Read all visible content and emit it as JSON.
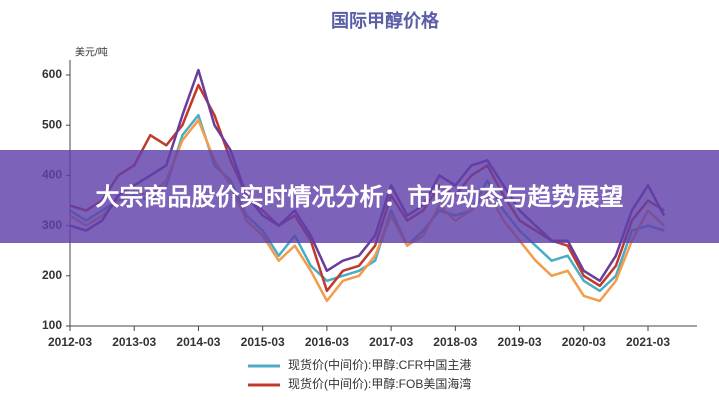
{
  "banner": {
    "title": "大宗商品股价实时情况分析：市场动态与趋势展望"
  },
  "chart_data": {
    "type": "line",
    "title": "国际甲醇价格",
    "y_label": "美元/吨",
    "x": [
      "2012-03",
      "2012-06",
      "2012-09",
      "2012-12",
      "2013-03",
      "2013-06",
      "2013-09",
      "2013-12",
      "2014-03",
      "2014-06",
      "2014-09",
      "2014-12",
      "2015-03",
      "2015-06",
      "2015-09",
      "2015-12",
      "2016-03",
      "2016-06",
      "2016-09",
      "2016-12",
      "2017-03",
      "2017-06",
      "2017-09",
      "2017-12",
      "2018-03",
      "2018-06",
      "2018-09",
      "2018-12",
      "2019-03",
      "2019-06",
      "2019-09",
      "2019-12",
      "2020-03",
      "2020-06",
      "2020-09",
      "2020-12",
      "2021-03",
      "2021-06"
    ],
    "series": [
      {
        "name": "现货价(中间价):甲醇:CFR中国主港",
        "color": "#4bacc6",
        "values": [
          330,
          310,
          330,
          350,
          360,
          350,
          380,
          480,
          520,
          420,
          390,
          320,
          290,
          240,
          280,
          220,
          190,
          200,
          210,
          230,
          330,
          260,
          290,
          330,
          320,
          330,
          390,
          330,
          290,
          260,
          230,
          240,
          190,
          170,
          200,
          290,
          300,
          290
        ]
      },
      {
        "name": "现货价(中间价):甲醇:FOB美国海湾",
        "color": "#c0392b",
        "values": [
          340,
          330,
          350,
          400,
          420,
          480,
          460,
          500,
          580,
          520,
          430,
          360,
          330,
          300,
          320,
          270,
          170,
          210,
          220,
          260,
          360,
          310,
          330,
          380,
          360,
          400,
          420,
          360,
          310,
          290,
          270,
          260,
          200,
          180,
          220,
          310,
          350,
          330
        ]
      },
      {
        "color": "#f39c4a",
        "values": [
          320,
          300,
          320,
          350,
          370,
          360,
          390,
          470,
          510,
          430,
          380,
          310,
          280,
          230,
          260,
          210,
          150,
          190,
          200,
          240,
          320,
          260,
          280,
          340,
          310,
          330,
          370,
          310,
          270,
          230,
          200,
          210,
          160,
          150,
          190,
          270,
          330,
          300
        ]
      },
      {
        "color": "#6a3d9a",
        "values": [
          300,
          290,
          310,
          360,
          380,
          400,
          420,
          520,
          610,
          500,
          450,
          360,
          320,
          300,
          330,
          280,
          210,
          230,
          240,
          280,
          380,
          320,
          340,
          400,
          380,
          420,
          430,
          380,
          330,
          300,
          270,
          270,
          210,
          190,
          240,
          330,
          380,
          320
        ]
      }
    ],
    "ylim": [
      100,
      600
    ],
    "yticks": [
      100,
      200,
      300,
      400,
      500,
      600
    ],
    "xticks": [
      "2012-03",
      "2013-03",
      "2014-03",
      "2015-03",
      "2016-03",
      "2017-03",
      "2018-03",
      "2019-03",
      "2020-03",
      "2021-03"
    ]
  }
}
